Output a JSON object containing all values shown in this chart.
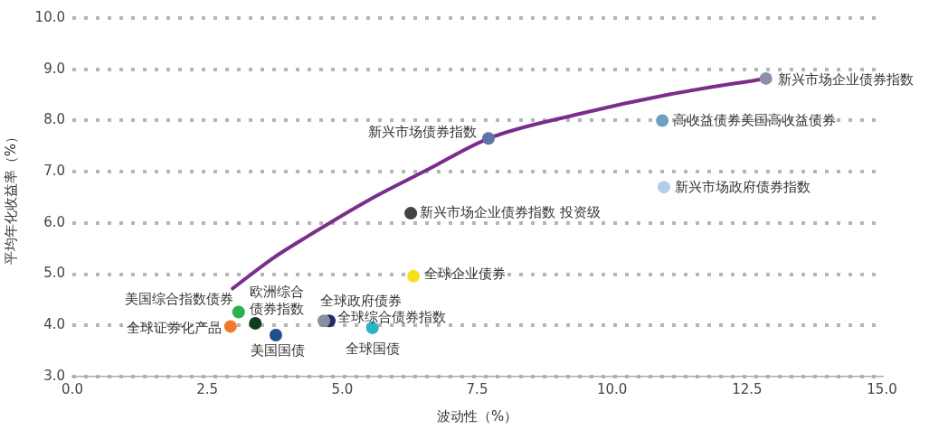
{
  "chart_data": {
    "type": "scatter",
    "xlabel": "波动性（%）",
    "ylabel": "平均年化收益率（%）",
    "xlim": [
      0,
      15
    ],
    "ylim": [
      3,
      10
    ],
    "xticks": [
      {
        "value": 0,
        "label": "0.0"
      },
      {
        "value": 2.5,
        "label": "2.5"
      },
      {
        "value": 5,
        "label": "5.0"
      },
      {
        "value": 7.5,
        "label": "7.5"
      },
      {
        "value": 10,
        "label": "10.0"
      },
      {
        "value": 12.5,
        "label": "12.5"
      },
      {
        "value": 15,
        "label": "15.0"
      }
    ],
    "yticks": [
      {
        "value": 3,
        "label": "3.0"
      },
      {
        "value": 4,
        "label": "4.0"
      },
      {
        "value": 5,
        "label": "5.0"
      },
      {
        "value": 6,
        "label": "6.0"
      },
      {
        "value": 7,
        "label": "7.0"
      },
      {
        "value": 8,
        "label": "8.0"
      },
      {
        "value": 9,
        "label": "9.0"
      },
      {
        "value": 10,
        "label": "10.0"
      }
    ],
    "grid": "y",
    "legend": false,
    "marker": "circle",
    "series": [
      {
        "name": "新兴市场企业债券指数",
        "color": "#8c8fa8",
        "x": [
          12.85
        ],
        "values": [
          8.82
        ]
      },
      {
        "name": "高收益债券美国高收益债券",
        "color": "#6ea0bf",
        "x": [
          10.93
        ],
        "values": [
          8.0
        ]
      },
      {
        "name": "新兴市场政府债券指数",
        "color": "#b3cde8",
        "x": [
          10.96
        ],
        "values": [
          6.7
        ]
      },
      {
        "name": "新兴市场债券指数",
        "color": "#6272a8",
        "x": [
          7.71
        ],
        "values": [
          7.65
        ]
      },
      {
        "name": "新兴市场企业债券指数 投资级",
        "color": "#444444",
        "x": [
          6.27
        ],
        "values": [
          6.19
        ]
      },
      {
        "name": "全球企业债券",
        "color": "#f5e11e",
        "x": [
          6.32
        ],
        "values": [
          4.96
        ]
      },
      {
        "name": "全球政府债券",
        "color": "#8a8fa0",
        "x": [
          4.66
        ],
        "values": [
          4.09
        ]
      },
      {
        "name": "全球综合债券指数",
        "color": "#1f2d6b",
        "x": [
          4.76
        ],
        "values": [
          4.09
        ]
      },
      {
        "name": "全球国债",
        "color": "#29b5c4",
        "x": [
          5.56
        ],
        "values": [
          3.95
        ]
      },
      {
        "name": "美国国债",
        "color": "#1e4f8f",
        "x": [
          3.77
        ],
        "values": [
          3.81
        ]
      },
      {
        "name": "欧洲综合债券指数",
        "color": "#0f3d1f",
        "x": [
          3.39
        ],
        "values": [
          4.04
        ]
      },
      {
        "name": "美国综合指数债券",
        "color": "#2db04b",
        "x": [
          3.08
        ],
        "values": [
          4.26
        ]
      },
      {
        "name": "全球证券化产品",
        "color": "#f07a2a",
        "x": [
          2.93
        ],
        "values": [
          3.98
        ]
      },
      {
        "type": "line",
        "color": "#7b2d8b",
        "marker": "none",
        "x": [
          2.97,
          3.7,
          4.36,
          5.48,
          6.6,
          7.71,
          9.4,
          11.06,
          12.85
        ],
        "values": [
          4.72,
          5.3,
          5.74,
          6.44,
          7.05,
          7.65,
          8.13,
          8.51,
          8.82
        ]
      }
    ]
  }
}
